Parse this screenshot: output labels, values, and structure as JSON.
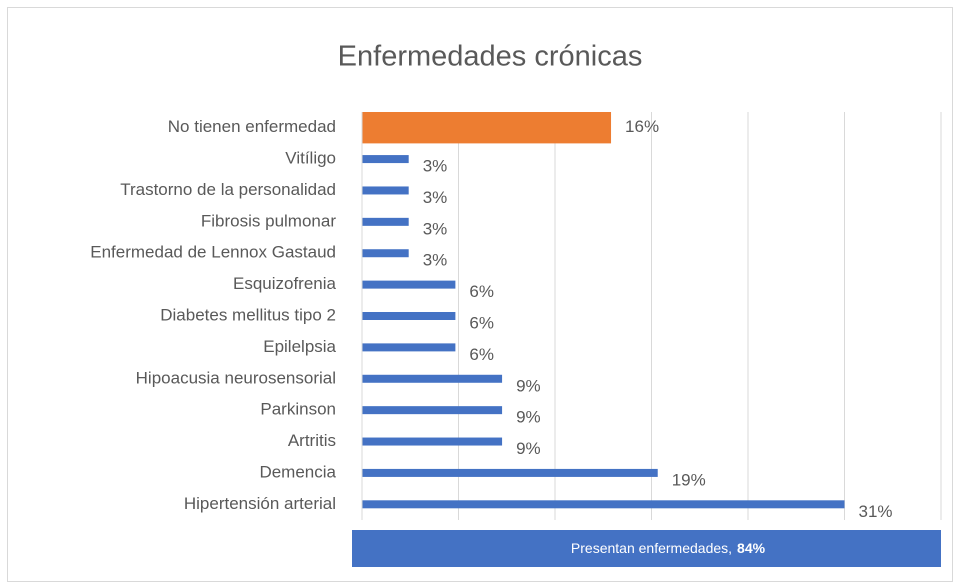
{
  "chart_data": {
    "type": "barh",
    "title": "Enfermedades crónicas",
    "categories": [
      "No tienen enfermedad",
      "Vitíligo",
      "Trastorno de la personalidad",
      "Fibrosis pulmonar",
      "Enfermedad de Lennox Gastaud",
      "Esquizofrenia",
      "Diabetes mellitus tipo 2",
      "Epilelpsia",
      "Hipoacusia neurosensorial",
      "Parkinson",
      "Artritis",
      "Demencia",
      "Hipertensión arterial"
    ],
    "values": [
      16,
      3,
      3,
      3,
      3,
      6,
      6,
      6,
      9,
      9,
      9,
      19,
      31
    ],
    "value_labels": [
      "16%",
      "3%",
      "3%",
      "3%",
      "3%",
      "6%",
      "6%",
      "6%",
      "9%",
      "9%",
      "9%",
      "19%",
      "31%"
    ],
    "color": "#4472c4",
    "highlight": {
      "category": "No tienen enfermedad",
      "color": "#ed7d31"
    },
    "xlim": [
      0,
      37.2
    ],
    "xticks": [
      0,
      6.2,
      12.4,
      18.6,
      24.8,
      31,
      37.2
    ],
    "grid": true,
    "footer": {
      "text": "Presentan enfermedades,",
      "value": 84,
      "value_label": "84%"
    }
  }
}
